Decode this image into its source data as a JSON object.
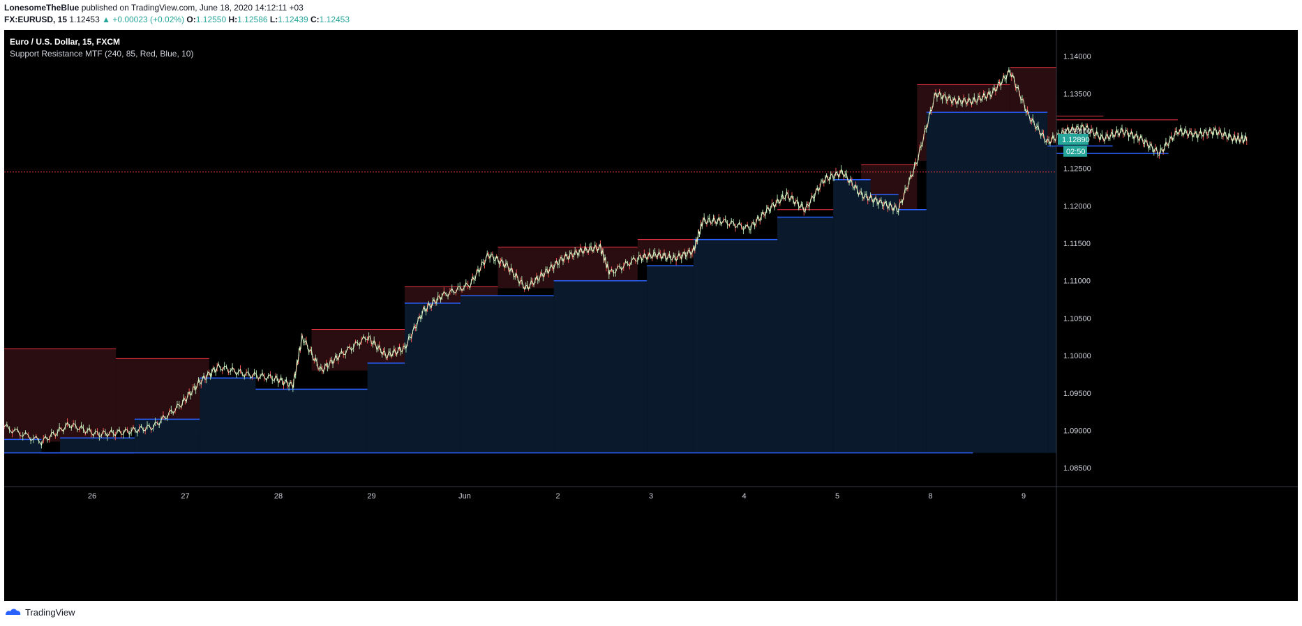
{
  "header": {
    "author": "LonesomeTheBlue",
    "published_text": "published on TradingView.com, June 18, 2020 14:12:11 +03"
  },
  "symbol_line": {
    "symbol": "FX:EURUSD, 15",
    "last": "1.12453",
    "change": "▲ +0.00023 (+0.02%)",
    "o_label": "O:",
    "o_value": "1.12550",
    "h_label": "H:",
    "h_value": "1.12586",
    "l_label": "L:",
    "l_value": "1.12439",
    "c_label": "C:",
    "c_value": "1.12453"
  },
  "legend": {
    "title": "Euro / U.S. Dollar, 15, FXCM",
    "indicator": "Support Resistance MTF (240, 85, Red, Blue, 10)"
  },
  "footer": {
    "brand": "TradingView"
  },
  "colors": {
    "background": "#000000",
    "resistance": "#f23645",
    "resistance_fill": "#2a0d10",
    "support": "#2962ff",
    "support_fill": "#0a1a2c",
    "price_badge": "#26a69a",
    "ref_line": "#f23645"
  },
  "chart_data": {
    "type": "candlestick",
    "symbol": "EURUSD",
    "timeframe": "15",
    "x_tick_labels": [
      "26",
      "27",
      "28",
      "29",
      "Jun",
      "2",
      "3",
      "4",
      "5",
      "8",
      "9"
    ],
    "y_tick_labels": [
      "1.14000",
      "1.13500",
      "1.13000",
      "1.12500",
      "1.12000",
      "1.11500",
      "1.11000",
      "1.10500",
      "1.10000",
      "1.09500",
      "1.09000",
      "1.08500"
    ],
    "ylim": [
      1.0825,
      1.1435
    ],
    "current_price": "1.12890",
    "countdown": "02:50",
    "reference_price": 1.12453,
    "price_path": [
      [
        0,
        1.0905
      ],
      [
        0.4,
        1.0885
      ],
      [
        0.7,
        1.0908
      ],
      [
        1.0,
        1.0895
      ],
      [
        1.3,
        1.0898
      ],
      [
        1.6,
        1.0905
      ],
      [
        1.9,
        1.0935
      ],
      [
        2.1,
        1.0965
      ],
      [
        2.3,
        1.0985
      ],
      [
        2.6,
        1.0975
      ],
      [
        2.9,
        1.097
      ],
      [
        3.1,
        1.096
      ],
      [
        3.2,
        1.1025
      ],
      [
        3.4,
        1.098
      ],
      [
        3.6,
        1.1
      ],
      [
        3.9,
        1.1025
      ],
      [
        4.1,
        1.1
      ],
      [
        4.3,
        1.101
      ],
      [
        4.5,
        1.106
      ],
      [
        4.7,
        1.108
      ],
      [
        5.0,
        1.1095
      ],
      [
        5.2,
        1.1135
      ],
      [
        5.4,
        1.112
      ],
      [
        5.6,
        1.109
      ],
      [
        5.8,
        1.111
      ],
      [
        6.0,
        1.113
      ],
      [
        6.2,
        1.114
      ],
      [
        6.4,
        1.1145
      ],
      [
        6.5,
        1.111
      ],
      [
        6.8,
        1.113
      ],
      [
        7.0,
        1.1135
      ],
      [
        7.2,
        1.113
      ],
      [
        7.4,
        1.114
      ],
      [
        7.5,
        1.118
      ],
      [
        7.7,
        1.118
      ],
      [
        8.0,
        1.117
      ],
      [
        8.2,
        1.1195
      ],
      [
        8.4,
        1.1215
      ],
      [
        8.6,
        1.1195
      ],
      [
        8.8,
        1.1235
      ],
      [
        9.0,
        1.1245
      ],
      [
        9.2,
        1.1215
      ],
      [
        9.4,
        1.1205
      ],
      [
        9.6,
        1.1195
      ],
      [
        9.8,
        1.126
      ],
      [
        10.0,
        1.135
      ],
      [
        10.2,
        1.134
      ],
      [
        10.4,
        1.134
      ],
      [
        10.6,
        1.135
      ],
      [
        10.8,
        1.138
      ],
      [
        11.0,
        1.132
      ],
      [
        11.2,
        1.1285
      ],
      [
        11.4,
        1.13
      ],
      [
        11.6,
        1.1305
      ],
      [
        11.8,
        1.129
      ],
      [
        12.0,
        1.13
      ],
      [
        12.2,
        1.129
      ],
      [
        12.4,
        1.127
      ],
      [
        12.6,
        1.13
      ],
      [
        12.8,
        1.1295
      ],
      [
        13.0,
        1.13
      ],
      [
        13.2,
        1.129
      ],
      [
        13.35,
        1.1289
      ]
    ],
    "resistance_levels": [
      [
        0,
        1.2,
        1.1009
      ],
      [
        1.2,
        2.2,
        1.0996
      ],
      [
        2.2,
        3.3,
        1.0932
      ],
      [
        3.3,
        4.3,
        1.1035
      ],
      [
        4.3,
        5.3,
        1.1092
      ],
      [
        5.3,
        6.8,
        1.1145
      ],
      [
        6.8,
        8.3,
        1.1155
      ],
      [
        8.3,
        9.2,
        1.1195
      ],
      [
        9.2,
        9.8,
        1.1255
      ],
      [
        9.8,
        10.8,
        1.1362
      ],
      [
        10.8,
        11.3,
        1.1385
      ],
      [
        11.3,
        11.8,
        1.1345
      ],
      [
        11.8,
        12.6,
        1.132
      ],
      [
        12.6,
        13.35,
        1.1315
      ]
    ],
    "support_levels": [
      [
        0,
        0.4,
        1.0888
      ],
      [
        0.4,
        1.4,
        1.087
      ],
      [
        0.6,
        1.4,
        1.089
      ],
      [
        1.4,
        2.1,
        1.0915
      ],
      [
        2.1,
        2.7,
        1.097
      ],
      [
        2.7,
        3.3,
        1.0955
      ],
      [
        3.3,
        3.9,
        1.0955
      ],
      [
        3.9,
        4.3,
        1.099
      ],
      [
        4.3,
        4.9,
        1.107
      ],
      [
        4.9,
        5.9,
        1.108
      ],
      [
        5.9,
        6.9,
        1.11
      ],
      [
        6.9,
        7.4,
        1.112
      ],
      [
        7.4,
        8.3,
        1.1155
      ],
      [
        8.3,
        8.9,
        1.1185
      ],
      [
        8.9,
        9.3,
        1.1235
      ],
      [
        9.3,
        9.6,
        1.1215
      ],
      [
        9.6,
        9.9,
        1.1195
      ],
      [
        9.9,
        11.2,
        1.1325
      ],
      [
        11.2,
        11.9,
        1.128
      ],
      [
        11.9,
        12.5,
        1.128
      ],
      [
        12.5,
        13.35,
        1.127
      ],
      [
        0,
        10.4,
        1.087
      ]
    ]
  }
}
